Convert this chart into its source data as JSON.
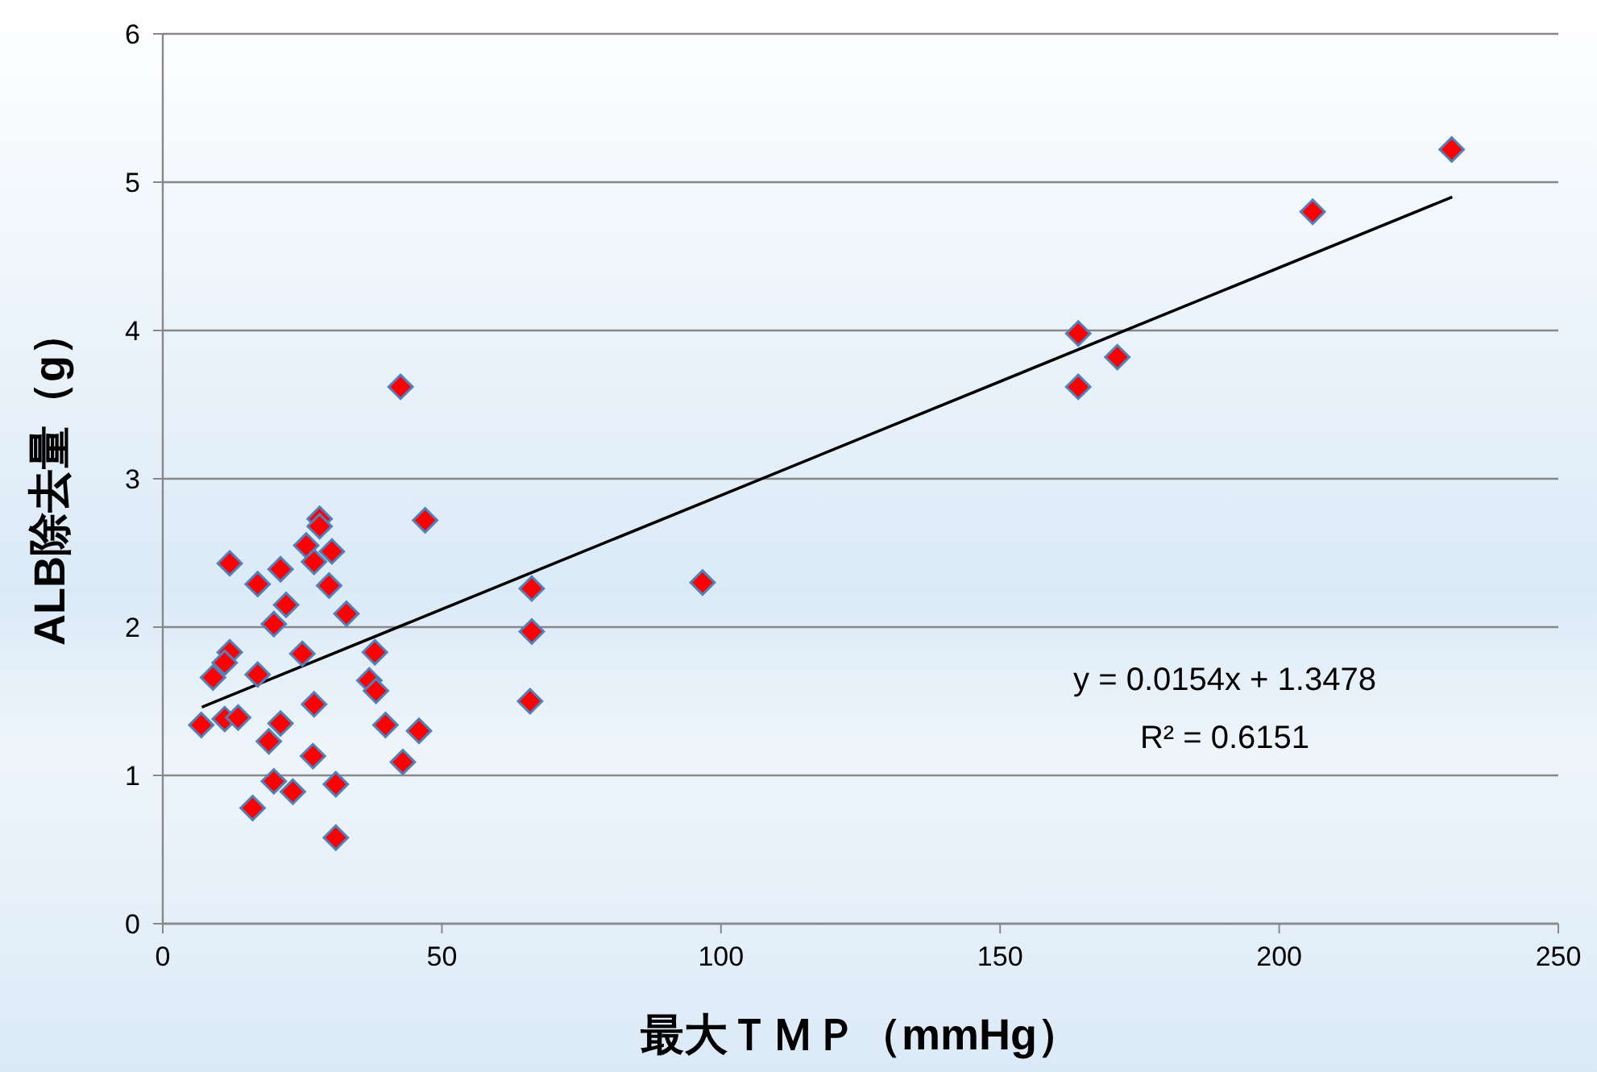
{
  "chart_data": {
    "type": "scatter",
    "xlabel": "最大ＴＭＰ（mmHg）",
    "ylabel": "ALB除去量（g）",
    "xlim": [
      0,
      250
    ],
    "xticks": [
      0,
      50,
      100,
      150,
      200,
      250
    ],
    "ylim": [
      0,
      6
    ],
    "yticks": [
      0,
      1,
      2,
      3,
      4,
      5,
      6
    ],
    "grid": "y",
    "series": [
      {
        "marker": "diamond",
        "color": "#ff0000",
        "x": [
          230.9,
          206,
          164,
          164,
          171,
          96.7,
          66.1,
          66.1,
          65.8,
          47,
          42.6,
          45.9,
          43,
          28.1,
          28.1,
          25.7,
          30.3,
          27.1,
          12,
          21.1,
          17,
          29.8,
          22.1,
          32.9,
          19.9,
          12,
          25,
          38,
          11.1,
          9,
          17,
          37,
          38.2,
          6.9,
          11.1,
          13.5,
          27.1,
          21.1,
          39.9,
          19,
          26.9,
          19.9,
          23.3,
          31,
          16.1,
          31
        ],
        "values": [
          5.22,
          4.8,
          3.98,
          3.62,
          3.82,
          2.3,
          2.26,
          1.97,
          1.5,
          2.72,
          3.62,
          1.3,
          1.09,
          2.73,
          2.68,
          2.55,
          2.51,
          2.44,
          2.43,
          2.39,
          2.29,
          2.28,
          2.15,
          2.09,
          2.02,
          1.83,
          1.82,
          1.83,
          1.76,
          1.66,
          1.68,
          1.64,
          1.57,
          1.34,
          1.38,
          1.39,
          1.48,
          1.35,
          1.34,
          1.23,
          1.13,
          0.96,
          0.89,
          0.94,
          0.78,
          0.58
        ]
      },
      {
        "type": "line",
        "color": "#000000",
        "x": [
          7,
          231
        ],
        "values": [
          1.46,
          4.9
        ]
      }
    ],
    "annotations": [
      "y = 0.0154x + 1.3478",
      "R² = 0.6151"
    ]
  }
}
